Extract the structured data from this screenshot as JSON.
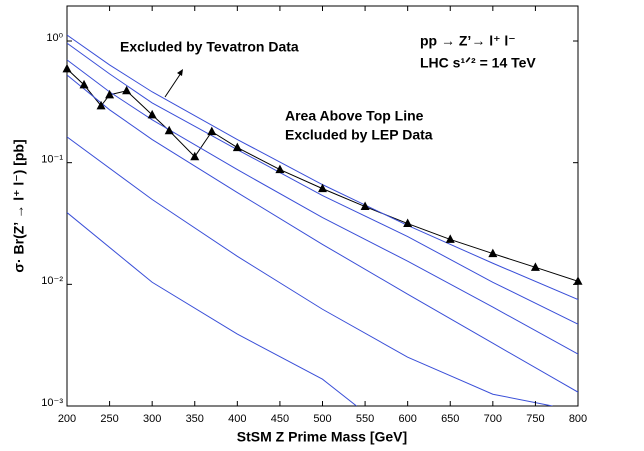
{
  "chart_data": {
    "type": "line",
    "xlabel": "StSM Z Prime Mass [GeV]",
    "ylabel": "σ· Br(Z’ → l⁺ l⁻) [pb]",
    "annotations": [
      "Excluded by Tevatron Data",
      "pp → Z’→  l⁺ l⁻",
      "LHC  s¹ᐟ² = 14 TeV",
      "Area Above Top Line",
      "Excluded by LEP Data"
    ],
    "log_y": true,
    "xlim": [
      200,
      800
    ],
    "xticks": [
      200,
      250,
      300,
      350,
      400,
      450,
      500,
      550,
      600,
      650,
      700,
      750,
      800
    ],
    "ylim": [
      0.001,
      1.94
    ],
    "yticks": [
      {
        "value": 0.001,
        "label": "10⁻³"
      },
      {
        "value": 0.01,
        "label": "10⁻²"
      },
      {
        "value": 0.1,
        "label": "10⁻¹"
      },
      {
        "value": 1,
        "label": "10⁰"
      }
    ],
    "series": [
      {
        "color": "#000000",
        "marker": "triangle",
        "x": [
          200,
          220,
          240,
          250,
          270,
          300,
          320,
          350,
          370,
          400,
          450,
          500,
          550,
          600,
          650,
          700,
          750,
          800
        ],
        "values": [
          0.59,
          0.436,
          0.293,
          0.361,
          0.39,
          0.247,
          0.183,
          0.112,
          0.18,
          0.133,
          0.0877,
          0.0612,
          0.0436,
          0.0316,
          0.0234,
          0.0179,
          0.0138,
          0.0106
        ]
      },
      {
        "color": "#3a4fd8",
        "x": [
          200,
          250,
          300,
          400,
          500,
          600,
          700,
          800
        ],
        "values": [
          1.12,
          0.636,
          0.382,
          0.155,
          0.066,
          0.0305,
          0.0149,
          0.0075
        ]
      },
      {
        "color": "#3a4fd8",
        "x": [
          200,
          250,
          300,
          400,
          500,
          600,
          700,
          800
        ],
        "values": [
          0.96,
          0.537,
          0.31,
          0.128,
          0.0537,
          0.0247,
          0.0104,
          0.0047
        ]
      },
      {
        "color": "#3a4fd8",
        "x": [
          200,
          250,
          300,
          400,
          500,
          600,
          700,
          800
        ],
        "values": [
          0.7,
          0.382,
          0.225,
          0.0877,
          0.0354,
          0.0155,
          0.0065,
          0.00267
        ]
      },
      {
        "color": "#3a4fd8",
        "x": [
          200,
          250,
          300,
          400,
          500,
          600,
          700,
          800
        ],
        "values": [
          0.526,
          0.272,
          0.155,
          0.0568,
          0.0213,
          0.0083,
          0.00328,
          0.0013
        ]
      },
      {
        "color": "#3a4fd8",
        "x": [
          200,
          300,
          400,
          500,
          600,
          700,
          770
        ],
        "values": [
          0.163,
          0.0498,
          0.017,
          0.00624,
          0.00252,
          0.00125,
          0.001
        ]
      },
      {
        "color": "#3a4fd8",
        "x": [
          200,
          300,
          400,
          500,
          540
        ],
        "values": [
          0.0389,
          0.0104,
          0.0039,
          0.00166,
          0.001
        ]
      }
    ]
  }
}
